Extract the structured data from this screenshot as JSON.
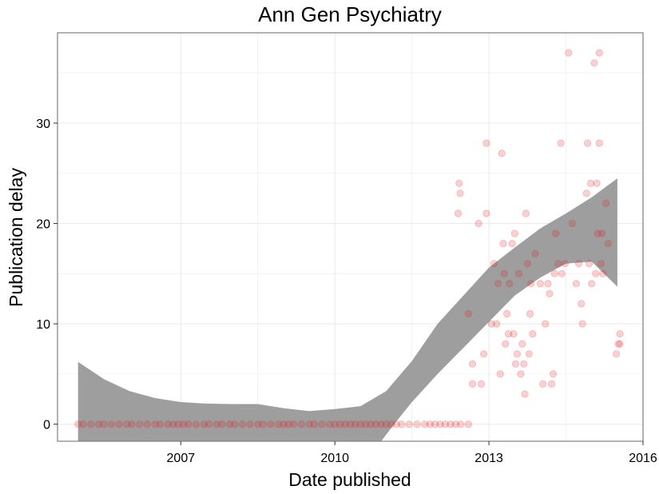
{
  "chart_data": {
    "type": "scatter",
    "title": "Ann Gen Psychiatry",
    "xlabel": "Date published",
    "ylabel": "Publication delay",
    "x_ticks": [
      2007,
      2010,
      2013,
      2016
    ],
    "y_ticks": [
      0,
      10,
      20,
      30
    ],
    "xlim": [
      2004.6,
      2016.0
    ],
    "ylim": [
      -1.7,
      39.0
    ],
    "grid": true,
    "legend": "none",
    "colors": {
      "points": "#e41a1c",
      "band": "#999999",
      "grid": "#ebebeb",
      "panel_border": "#7f7f7f"
    },
    "series": [
      {
        "points": [
          [
            2005.0,
            0
          ],
          [
            2005.1,
            0
          ],
          [
            2005.25,
            0
          ],
          [
            2005.4,
            0
          ],
          [
            2005.5,
            0
          ],
          [
            2005.65,
            0
          ],
          [
            2005.8,
            0
          ],
          [
            2005.95,
            0
          ],
          [
            2006.05,
            0
          ],
          [
            2006.2,
            0
          ],
          [
            2006.35,
            0
          ],
          [
            2006.5,
            0
          ],
          [
            2006.6,
            0
          ],
          [
            2006.75,
            0
          ],
          [
            2006.85,
            0
          ],
          [
            2006.95,
            0
          ],
          [
            2007.05,
            0
          ],
          [
            2007.15,
            0
          ],
          [
            2007.3,
            0
          ],
          [
            2007.45,
            0
          ],
          [
            2007.55,
            0
          ],
          [
            2007.7,
            0
          ],
          [
            2007.8,
            0
          ],
          [
            2007.95,
            0
          ],
          [
            2008.05,
            0
          ],
          [
            2008.2,
            0
          ],
          [
            2008.35,
            0
          ],
          [
            2008.5,
            0
          ],
          [
            2008.6,
            0
          ],
          [
            2008.75,
            0
          ],
          [
            2008.9,
            0
          ],
          [
            2009.0,
            0
          ],
          [
            2009.1,
            0
          ],
          [
            2009.2,
            0
          ],
          [
            2009.35,
            0
          ],
          [
            2009.5,
            0
          ],
          [
            2009.6,
            0
          ],
          [
            2009.75,
            0
          ],
          [
            2009.9,
            0
          ],
          [
            2010.0,
            0
          ],
          [
            2010.1,
            0
          ],
          [
            2010.2,
            0
          ],
          [
            2010.3,
            0
          ],
          [
            2010.4,
            0
          ],
          [
            2010.5,
            0
          ],
          [
            2010.6,
            0
          ],
          [
            2010.7,
            0
          ],
          [
            2010.8,
            0
          ],
          [
            2010.9,
            0
          ],
          [
            2011.0,
            0
          ],
          [
            2011.1,
            0
          ],
          [
            2011.2,
            0
          ],
          [
            2011.3,
            0
          ],
          [
            2011.45,
            0
          ],
          [
            2011.6,
            0
          ],
          [
            2011.75,
            0
          ],
          [
            2011.85,
            0
          ],
          [
            2011.95,
            0
          ],
          [
            2012.05,
            0
          ],
          [
            2012.15,
            0
          ],
          [
            2012.25,
            0
          ],
          [
            2012.35,
            0
          ],
          [
            2012.45,
            0
          ],
          [
            2012.6,
            0
          ],
          [
            2012.42,
            24
          ],
          [
            2012.44,
            23
          ],
          [
            2012.4,
            21
          ],
          [
            2012.6,
            11
          ],
          [
            2012.68,
            6
          ],
          [
            2012.68,
            4
          ],
          [
            2012.8,
            20
          ],
          [
            2012.85,
            4
          ],
          [
            2012.9,
            7
          ],
          [
            2012.95,
            21
          ],
          [
            2012.95,
            28
          ],
          [
            2013.05,
            10
          ],
          [
            2013.1,
            16
          ],
          [
            2013.15,
            10
          ],
          [
            2013.18,
            14
          ],
          [
            2013.22,
            5
          ],
          [
            2013.25,
            27
          ],
          [
            2013.28,
            18
          ],
          [
            2013.3,
            15
          ],
          [
            2013.32,
            8
          ],
          [
            2013.35,
            11
          ],
          [
            2013.38,
            9
          ],
          [
            2013.4,
            14
          ],
          [
            2013.45,
            18
          ],
          [
            2013.48,
            9
          ],
          [
            2013.5,
            19
          ],
          [
            2013.52,
            6
          ],
          [
            2013.55,
            7
          ],
          [
            2013.58,
            15
          ],
          [
            2013.62,
            5
          ],
          [
            2013.65,
            8
          ],
          [
            2013.68,
            6
          ],
          [
            2013.7,
            3
          ],
          [
            2013.72,
            21
          ],
          [
            2013.75,
            16
          ],
          [
            2013.78,
            7
          ],
          [
            2013.8,
            11
          ],
          [
            2013.82,
            14
          ],
          [
            2013.85,
            9
          ],
          [
            2013.9,
            17
          ],
          [
            2014.0,
            14
          ],
          [
            2014.05,
            4
          ],
          [
            2014.1,
            10
          ],
          [
            2014.15,
            14
          ],
          [
            2014.18,
            13
          ],
          [
            2014.22,
            4
          ],
          [
            2014.25,
            5
          ],
          [
            2014.28,
            15
          ],
          [
            2014.3,
            19
          ],
          [
            2014.35,
            16
          ],
          [
            2014.4,
            28
          ],
          [
            2014.42,
            15
          ],
          [
            2014.48,
            16
          ],
          [
            2014.55,
            37
          ],
          [
            2014.62,
            20
          ],
          [
            2014.7,
            14
          ],
          [
            2014.75,
            16
          ],
          [
            2014.8,
            12
          ],
          [
            2014.82,
            10
          ],
          [
            2014.9,
            23
          ],
          [
            2014.92,
            28
          ],
          [
            2014.95,
            16
          ],
          [
            2014.98,
            24
          ],
          [
            2015.0,
            14
          ],
          [
            2015.05,
            36
          ],
          [
            2015.08,
            15
          ],
          [
            2015.1,
            24
          ],
          [
            2015.12,
            19
          ],
          [
            2015.15,
            37
          ],
          [
            2015.15,
            28
          ],
          [
            2015.18,
            16
          ],
          [
            2015.2,
            19
          ],
          [
            2015.22,
            15
          ],
          [
            2015.28,
            22
          ],
          [
            2015.32,
            18
          ],
          [
            2015.48,
            7
          ],
          [
            2015.52,
            8
          ],
          [
            2015.55,
            9
          ],
          [
            2015.55,
            8
          ]
        ]
      }
    ],
    "smooth": {
      "upper": [
        [
          2005.0,
          6.2
        ],
        [
          2005.5,
          4.5
        ],
        [
          2006.0,
          3.3
        ],
        [
          2006.5,
          2.6
        ],
        [
          2007.0,
          2.2
        ],
        [
          2007.5,
          2.05
        ],
        [
          2008.0,
          2.0
        ],
        [
          2008.5,
          2.0
        ],
        [
          2009.0,
          1.6
        ],
        [
          2009.5,
          1.3
        ],
        [
          2010.0,
          1.5
        ],
        [
          2010.5,
          1.8
        ],
        [
          2011.0,
          3.3
        ],
        [
          2011.5,
          6.3
        ],
        [
          2012.0,
          10.0
        ],
        [
          2012.5,
          12.8
        ],
        [
          2013.0,
          15.6
        ],
        [
          2013.5,
          17.6
        ],
        [
          2014.0,
          19.5
        ],
        [
          2014.5,
          21.0
        ],
        [
          2015.0,
          22.6
        ],
        [
          2015.5,
          24.5
        ]
      ],
      "lower": [
        [
          2005.0,
          -1.7
        ],
        [
          2010.9,
          -1.7
        ],
        [
          2011.2,
          0.3
        ],
        [
          2011.5,
          2.2
        ],
        [
          2012.0,
          5.0
        ],
        [
          2012.5,
          7.6
        ],
        [
          2013.0,
          10.2
        ],
        [
          2013.5,
          12.8
        ],
        [
          2014.0,
          14.6
        ],
        [
          2014.5,
          16.0
        ],
        [
          2015.0,
          16.2
        ],
        [
          2015.5,
          13.7
        ]
      ]
    }
  }
}
